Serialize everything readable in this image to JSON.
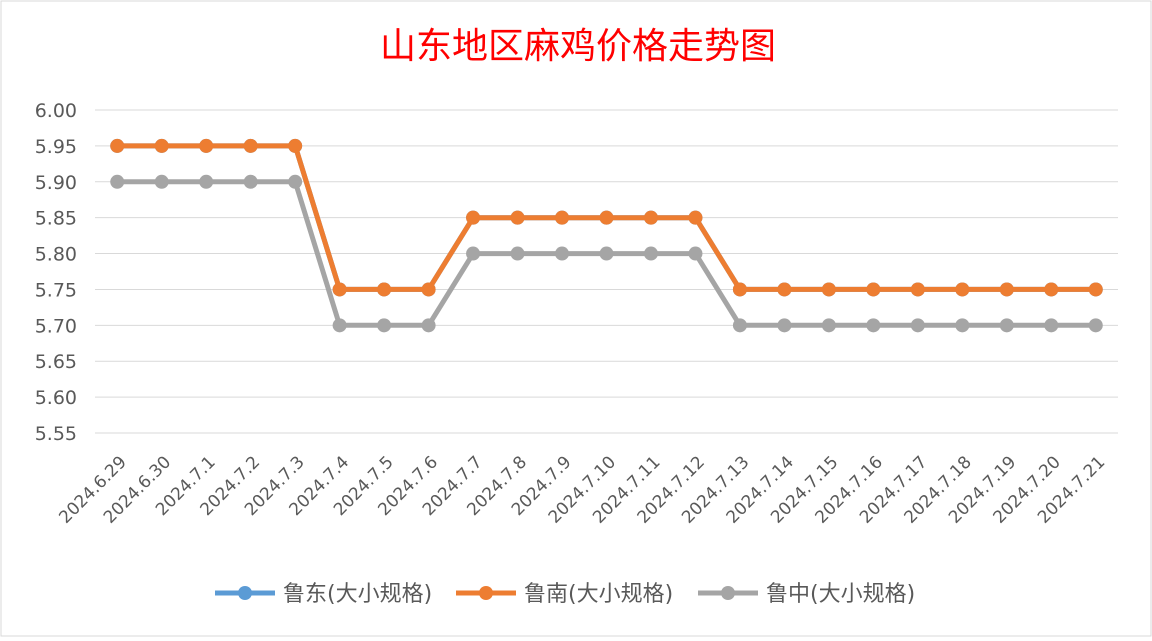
{
  "chart_data": {
    "type": "line",
    "title": "山东地区麻鸡价格走势图",
    "xlabel": "",
    "ylabel": "",
    "ylim": [
      5.55,
      6.0
    ],
    "yticks": [
      "6.00",
      "5.95",
      "5.90",
      "5.85",
      "5.80",
      "5.75",
      "5.70",
      "5.65",
      "5.60",
      "5.55"
    ],
    "grid": true,
    "legend_position": "bottom",
    "categories": [
      "2024.6.29",
      "2024.6.30",
      "2024.7.1",
      "2024.7.2",
      "2024.7.3",
      "2024.7.4",
      "2024.7.5",
      "2024.7.6",
      "2024.7.7",
      "2024.7.8",
      "2024.7.9",
      "2024.7.10",
      "2024.7.11",
      "2024.7.12",
      "2024.7.13",
      "2024.7.14",
      "2024.7.15",
      "2024.7.16",
      "2024.7.17",
      "2024.7.18",
      "2024.7.19",
      "2024.7.20",
      "2024.7.21"
    ],
    "series": [
      {
        "name": "鲁东(大小规格)",
        "color": "#5B9BD5",
        "values": [
          5.95,
          5.95,
          5.95,
          5.95,
          5.95,
          5.75,
          5.75,
          5.75,
          5.85,
          5.85,
          5.85,
          5.85,
          5.85,
          5.85,
          5.75,
          5.75,
          5.75,
          5.75,
          5.75,
          5.75,
          5.75,
          5.75,
          5.75
        ]
      },
      {
        "name": "鲁南(大小规格)",
        "color": "#ED7D31",
        "values": [
          5.95,
          5.95,
          5.95,
          5.95,
          5.95,
          5.75,
          5.75,
          5.75,
          5.85,
          5.85,
          5.85,
          5.85,
          5.85,
          5.85,
          5.75,
          5.75,
          5.75,
          5.75,
          5.75,
          5.75,
          5.75,
          5.75,
          5.75
        ]
      },
      {
        "name": "鲁中(大小规格)",
        "color": "#A5A5A5",
        "values": [
          5.9,
          5.9,
          5.9,
          5.9,
          5.9,
          5.7,
          5.7,
          5.7,
          5.8,
          5.8,
          5.8,
          5.8,
          5.8,
          5.8,
          5.7,
          5.7,
          5.7,
          5.7,
          5.7,
          5.7,
          5.7,
          5.7,
          5.7
        ]
      }
    ],
    "title_color": "#FF0000"
  }
}
